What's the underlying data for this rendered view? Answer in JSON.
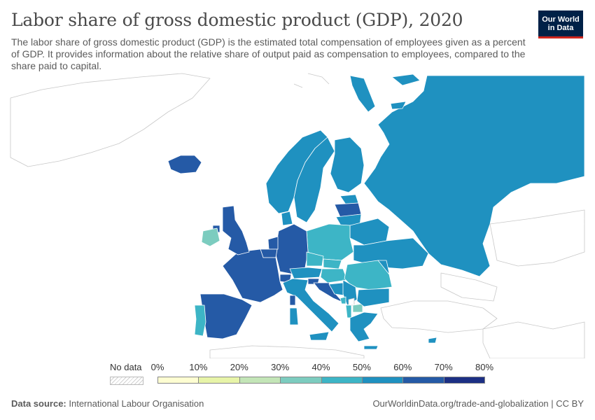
{
  "header": {
    "title": "Labor share of gross domestic product (GDP), 2020",
    "subtitle": "The labor share of gross domestic product (GDP) is the estimated total compensation of employees given as a percent of GDP. It provides information about the relative share of output paid as compensation to employees, compared to the share paid to capital."
  },
  "logo": {
    "line1": "Our World",
    "line2": "in Data"
  },
  "legend": {
    "no_data_label": "No data",
    "ticks": [
      "0%",
      "10%",
      "20%",
      "30%",
      "40%",
      "50%",
      "60%",
      "70%",
      "80%"
    ],
    "bins": [
      {
        "min": 0,
        "max": 10,
        "color": "#fefed2"
      },
      {
        "min": 10,
        "max": 20,
        "color": "#e7f4a8"
      },
      {
        "min": 20,
        "max": 30,
        "color": "#c3e5b7"
      },
      {
        "min": 30,
        "max": 40,
        "color": "#7cccbf"
      },
      {
        "min": 40,
        "max": 50,
        "color": "#3db5c6"
      },
      {
        "min": 50,
        "max": 60,
        "color": "#1f91c0"
      },
      {
        "min": 60,
        "max": 70,
        "color": "#255aa6"
      },
      {
        "min": 70,
        "max": 80,
        "color": "#1c2f84"
      }
    ]
  },
  "map_colors": {
    "no_data_fill": "#ffffff",
    "no_data_stroke": "#c8c8c8",
    "bin_40_50": "#3db5c6",
    "bin_50_60": "#1f91c0",
    "bin_60_70": "#255aa6",
    "bin_30_40": "#7cccbf"
  },
  "regions": [
    {
      "name": "Russia",
      "bin": "50-60%"
    },
    {
      "name": "Norway",
      "bin": "50-60%"
    },
    {
      "name": "Sweden",
      "bin": "50-60%"
    },
    {
      "name": "Finland",
      "bin": "50-60%"
    },
    {
      "name": "Iceland",
      "bin": "60-70%"
    },
    {
      "name": "United Kingdom",
      "bin": "60-70%"
    },
    {
      "name": "Ireland",
      "bin": "30-40%"
    },
    {
      "name": "France",
      "bin": "60-70%"
    },
    {
      "name": "Spain",
      "bin": "60-70%"
    },
    {
      "name": "Portugal",
      "bin": "40-50%"
    },
    {
      "name": "Germany",
      "bin": "60-70%"
    },
    {
      "name": "Poland",
      "bin": "40-50%"
    },
    {
      "name": "Belarus",
      "bin": "50-60%"
    },
    {
      "name": "Ukraine",
      "bin": "50-60%"
    },
    {
      "name": "Italy",
      "bin": "50-60%"
    },
    {
      "name": "Romania",
      "bin": "40-50%"
    },
    {
      "name": "Bulgaria",
      "bin": "50-60%"
    },
    {
      "name": "Greece",
      "bin": "50-60%"
    },
    {
      "name": "Latvia",
      "bin": "60-70%"
    },
    {
      "name": "Croatia",
      "bin": "60-70%"
    }
  ],
  "footer": {
    "source_label": "Data source:",
    "source_value": "International Labour Organisation",
    "url": "OurWorldinData.org/trade-and-globalization | CC BY"
  }
}
